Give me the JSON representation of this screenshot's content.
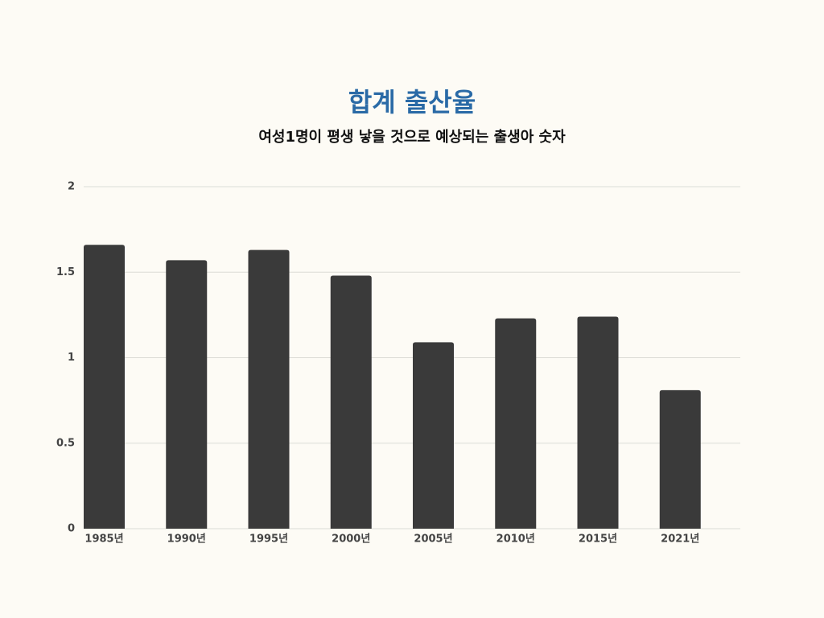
{
  "chart_data": {
    "type": "bar",
    "title": "합계 출산율",
    "subtitle": "여성1명이 평생 낳을 것으로 예상되는 출생아 숫자",
    "categories": [
      "1985년",
      "1990년",
      "1995년",
      "2000년",
      "2005년",
      "2010년",
      "2015년",
      "2021년"
    ],
    "values": [
      1.66,
      1.57,
      1.63,
      1.48,
      1.09,
      1.23,
      1.24,
      0.81
    ],
    "color": "#3a3a3a",
    "ylim": [
      0,
      2
    ],
    "yticks": [
      0,
      0.5,
      1,
      1.5,
      2
    ],
    "grid": true
  }
}
